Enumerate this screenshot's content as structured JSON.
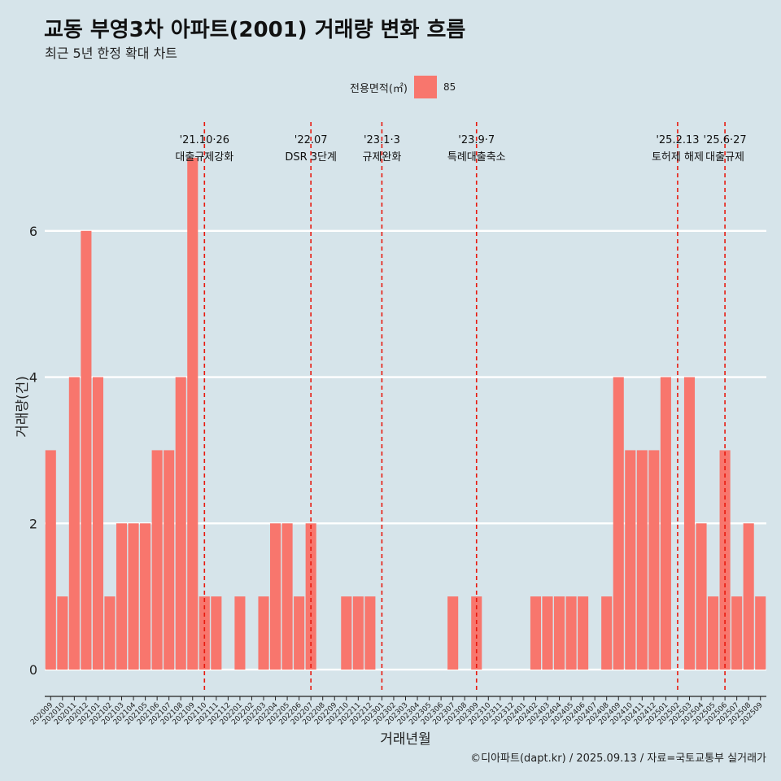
{
  "title": "교동 부영3차 아파트(2001) 거래량 변화 흐름",
  "subtitle": "최근 5년 한정 확대 차트",
  "caption": "©디아파트(dapt.kr) / 2025.09.13 / 자료=국토교통부 실거래가",
  "legend": {
    "title": "전용면적(㎡)",
    "label": "85",
    "color": "#f8766d"
  },
  "chart_data": {
    "type": "bar",
    "xlabel": "거래년월",
    "ylabel": "거래량(건)",
    "ylim": [
      -0.3,
      7.6
    ],
    "yticks": [
      0,
      2,
      4,
      6
    ],
    "grid": true,
    "bar_color": "#f8766d",
    "categories": [
      "202009",
      "202010",
      "202011",
      "202012",
      "202101",
      "202102",
      "202103",
      "202104",
      "202105",
      "202106",
      "202107",
      "202108",
      "202109",
      "202110",
      "202111",
      "202112",
      "202201",
      "202202",
      "202203",
      "202204",
      "202205",
      "202206",
      "202207",
      "202208",
      "202209",
      "202210",
      "202211",
      "202212",
      "202301",
      "202302",
      "202303",
      "202304",
      "202305",
      "202306",
      "202307",
      "202308",
      "202309",
      "202310",
      "202311",
      "202312",
      "202401",
      "202402",
      "202403",
      "202404",
      "202405",
      "202406",
      "202407",
      "202408",
      "202409",
      "202410",
      "202411",
      "202412",
      "202501",
      "202502",
      "202503",
      "202504",
      "202505",
      "202506",
      "202507",
      "202508",
      "202509"
    ],
    "values": [
      3,
      1,
      4,
      6,
      4,
      1,
      2,
      2,
      2,
      3,
      3,
      4,
      7,
      1,
      1,
      0,
      1,
      0,
      1,
      2,
      2,
      1,
      2,
      0,
      0,
      1,
      1,
      1,
      0,
      0,
      0,
      0,
      0,
      0,
      1,
      0,
      1,
      0,
      0,
      0,
      0,
      1,
      1,
      1,
      1,
      1,
      0,
      1,
      4,
      3,
      3,
      3,
      4,
      0,
      4,
      2,
      1,
      3,
      1,
      2,
      1
    ],
    "events": [
      {
        "category": "202110",
        "date": "'21.10·26",
        "label": "대출규제강화"
      },
      {
        "category": "202207",
        "date": "'22.07",
        "label": "DSR 3단계"
      },
      {
        "category": "202301",
        "date": "'23.1·3",
        "label": "규제완화"
      },
      {
        "category": "202309",
        "date": "'23.9·7",
        "label": "특례대출축소"
      },
      {
        "category": "202502",
        "date": "'25.2.13",
        "label": "토허제 해제"
      },
      {
        "category": "202506",
        "date": "'25.6·27",
        "label": "대출규제"
      }
    ]
  }
}
